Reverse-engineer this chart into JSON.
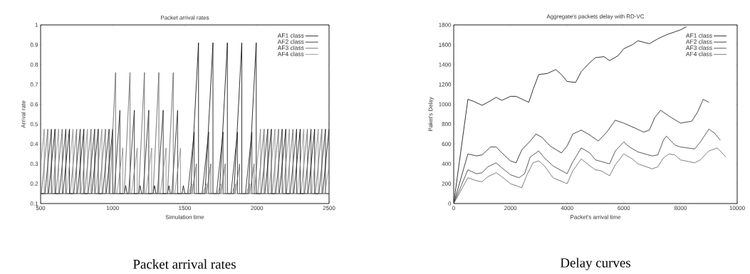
{
  "chart_data": [
    {
      "type": "line",
      "title": "Packet arrival rates",
      "xlabel": "Simulation time",
      "ylabel": "Arrival rate",
      "annotations": [
        "Packet arrival rates"
      ],
      "legend": "top right",
      "xlim": [
        500,
        2500
      ],
      "xticks": [
        500,
        1000,
        1500,
        2000,
        2500
      ],
      "ylim": [
        0.1,
        1
      ],
      "yticks": [
        0.1,
        0.2,
        0.3,
        0.4,
        0.5,
        0.6,
        0.7,
        0.8,
        0.9,
        1
      ],
      "series": [
        {
          "name": "AF1 class",
          "color": "#000000",
          "line_style": "solid",
          "x": [
            500,
            555,
            600,
            600,
            655,
            700,
            700,
            755,
            800,
            800,
            855,
            900,
            900,
            955,
            1000,
            1000,
            1080,
            1090,
            1100,
            1180,
            1190,
            1200,
            1280,
            1290,
            1300,
            1380,
            1390,
            1400,
            1480,
            1490,
            1500,
            1540,
            1595,
            1595,
            1640,
            1695,
            1695,
            1740,
            1795,
            1795,
            1840,
            1895,
            1895,
            1940,
            1995,
            1995,
            2055,
            2100,
            2100,
            2155,
            2200,
            2200,
            2255,
            2300,
            2300,
            2355,
            2400,
            2400,
            2455,
            2500
          ],
          "values": [
            0.15,
            0.15,
            0.475,
            0.15,
            0.15,
            0.475,
            0.15,
            0.15,
            0.475,
            0.15,
            0.15,
            0.475,
            0.15,
            0.15,
            0.475,
            0.15,
            0.15,
            0.19,
            0.15,
            0.15,
            0.19,
            0.15,
            0.15,
            0.19,
            0.15,
            0.15,
            0.19,
            0.15,
            0.15,
            0.19,
            0.15,
            0.15,
            0.91,
            0.15,
            0.15,
            0.91,
            0.15,
            0.15,
            0.91,
            0.15,
            0.15,
            0.91,
            0.15,
            0.15,
            0.91,
            0.15,
            0.15,
            0.475,
            0.15,
            0.15,
            0.475,
            0.15,
            0.15,
            0.475,
            0.15,
            0.15,
            0.475,
            0.15,
            0.15,
            0.475
          ]
        },
        {
          "name": "AF2 class",
          "color": "#222222",
          "line_style": "dashed",
          "x": [
            500,
            530,
            575,
            575,
            630,
            675,
            675,
            730,
            775,
            775,
            830,
            875,
            875,
            930,
            975,
            975,
            1010,
            1050,
            1050,
            1110,
            1150,
            1150,
            1210,
            1250,
            1250,
            1310,
            1350,
            1350,
            1410,
            1450,
            1450,
            1520,
            1565,
            1565,
            1620,
            1665,
            1665,
            1720,
            1765,
            1765,
            1820,
            1865,
            1865,
            1920,
            1965,
            1965,
            2030,
            2075,
            2075,
            2130,
            2175,
            2175,
            2230,
            2275,
            2275,
            2330,
            2375,
            2375,
            2430,
            2475,
            2475,
            2500
          ],
          "values": [
            0.15,
            0.15,
            0.475,
            0.15,
            0.15,
            0.475,
            0.15,
            0.15,
            0.475,
            0.15,
            0.15,
            0.475,
            0.15,
            0.15,
            0.475,
            0.15,
            0.15,
            0.57,
            0.15,
            0.15,
            0.57,
            0.15,
            0.15,
            0.57,
            0.15,
            0.15,
            0.57,
            0.15,
            0.15,
            0.57,
            0.15,
            0.15,
            0.46,
            0.15,
            0.15,
            0.46,
            0.15,
            0.15,
            0.46,
            0.15,
            0.15,
            0.46,
            0.15,
            0.15,
            0.46,
            0.15,
            0.15,
            0.475,
            0.15,
            0.15,
            0.475,
            0.15,
            0.15,
            0.475,
            0.15,
            0.15,
            0.475,
            0.15,
            0.15,
            0.475,
            0.15,
            0.15
          ]
        },
        {
          "name": "AF3 class",
          "color": "#666666",
          "line_style": "dotted",
          "x": [
            500,
            505,
            550,
            550,
            605,
            650,
            650,
            705,
            750,
            750,
            805,
            850,
            850,
            905,
            950,
            950,
            980,
            1020,
            1020,
            1080,
            1120,
            1120,
            1180,
            1220,
            1220,
            1280,
            1320,
            1320,
            1380,
            1420,
            1420,
            1550,
            1580,
            1580,
            1650,
            1680,
            1680,
            1750,
            1780,
            1780,
            1850,
            1880,
            1880,
            1950,
            1980,
            1980,
            2005,
            2050,
            2050,
            2105,
            2150,
            2150,
            2205,
            2250,
            2250,
            2305,
            2350,
            2350,
            2405,
            2450,
            2450,
            2500
          ],
          "values": [
            0.15,
            0.15,
            0.475,
            0.15,
            0.15,
            0.475,
            0.15,
            0.15,
            0.475,
            0.15,
            0.15,
            0.475,
            0.15,
            0.15,
            0.475,
            0.15,
            0.15,
            0.76,
            0.15,
            0.15,
            0.76,
            0.15,
            0.15,
            0.76,
            0.15,
            0.15,
            0.76,
            0.15,
            0.15,
            0.76,
            0.15,
            0.15,
            0.3,
            0.15,
            0.15,
            0.3,
            0.15,
            0.15,
            0.3,
            0.15,
            0.15,
            0.3,
            0.15,
            0.15,
            0.3,
            0.15,
            0.15,
            0.475,
            0.15,
            0.15,
            0.475,
            0.15,
            0.15,
            0.475,
            0.15,
            0.15,
            0.475,
            0.15,
            0.15,
            0.475,
            0.15,
            0.15
          ]
        },
        {
          "name": "AF4 class",
          "color": "#888888",
          "line_style": "dashed",
          "x": [
            500,
            525,
            525,
            580,
            625,
            625,
            680,
            725,
            725,
            780,
            825,
            825,
            880,
            925,
            925,
            1030,
            1070,
            1070,
            1130,
            1170,
            1170,
            1230,
            1270,
            1270,
            1330,
            1370,
            1370,
            1430,
            1470,
            1470,
            1525,
            1550,
            1550,
            1625,
            1650,
            1650,
            1725,
            1750,
            1750,
            1825,
            1850,
            1850,
            1925,
            1950,
            1950,
            1980,
            2025,
            2025,
            2080,
            2125,
            2125,
            2180,
            2225,
            2225,
            2280,
            2325,
            2325,
            2380,
            2425,
            2425,
            2470,
            2500
          ],
          "values": [
            0.29,
            0.475,
            0.15,
            0.15,
            0.475,
            0.15,
            0.15,
            0.475,
            0.15,
            0.15,
            0.475,
            0.15,
            0.15,
            0.475,
            0.15,
            0.15,
            0.38,
            0.15,
            0.15,
            0.38,
            0.15,
            0.15,
            0.38,
            0.15,
            0.15,
            0.38,
            0.15,
            0.15,
            0.38,
            0.15,
            0.15,
            0.2,
            0.15,
            0.15,
            0.2,
            0.15,
            0.15,
            0.2,
            0.15,
            0.15,
            0.2,
            0.15,
            0.15,
            0.2,
            0.15,
            0.15,
            0.475,
            0.15,
            0.15,
            0.475,
            0.15,
            0.15,
            0.475,
            0.15,
            0.15,
            0.475,
            0.15,
            0.15,
            0.475,
            0.15,
            0.15,
            0.29
          ]
        }
      ]
    },
    {
      "type": "line",
      "title": "Aggregate's packets delay with RD-VC",
      "xlabel": "Packet's arrival time",
      "ylabel": "Paket's Delay",
      "annotations": [
        "Delay curves"
      ],
      "legend": "top right",
      "xlim": [
        0,
        10000
      ],
      "xticks": [
        0,
        2000,
        4000,
        6000,
        8000,
        10000
      ],
      "ylim": [
        0,
        1800
      ],
      "yticks": [
        0,
        200,
        400,
        600,
        800,
        1000,
        1200,
        1400,
        1600,
        1800
      ],
      "series": [
        {
          "name": "AF1 class",
          "color": "#000000",
          "line_style": "solid",
          "x": [
            0,
            500,
            700,
            1000,
            1200,
            1500,
            1700,
            2000,
            2200,
            2500,
            2650,
            2800,
            3000,
            3300,
            3600,
            3800,
            4000,
            4300,
            4500,
            4800,
            5000,
            5300,
            5500,
            5800,
            6000,
            6300,
            6500,
            6900,
            7200,
            7500,
            7800,
            8000,
            8200
          ],
          "values": [
            0,
            1050,
            1030,
            990,
            1020,
            1070,
            1040,
            1080,
            1080,
            1040,
            1020,
            1150,
            1300,
            1310,
            1350,
            1300,
            1230,
            1220,
            1330,
            1420,
            1470,
            1480,
            1440,
            1490,
            1560,
            1600,
            1640,
            1610,
            1660,
            1700,
            1730,
            1750,
            1780
          ]
        },
        {
          "name": "AF2 class",
          "color": "#222222",
          "line_style": "dashed",
          "x": [
            0,
            500,
            800,
            1000,
            1300,
            1500,
            1700,
            2000,
            2200,
            2400,
            2700,
            2900,
            3100,
            3400,
            3800,
            4000,
            4200,
            4500,
            4800,
            5100,
            5400,
            5700,
            6000,
            6400,
            6700,
            6900,
            7100,
            7300,
            7600,
            8000,
            8400,
            8600,
            8800,
            9000
          ],
          "values": [
            0,
            500,
            480,
            490,
            570,
            570,
            510,
            430,
            410,
            540,
            630,
            700,
            670,
            580,
            510,
            580,
            700,
            740,
            690,
            630,
            720,
            840,
            810,
            760,
            720,
            740,
            870,
            940,
            880,
            810,
            830,
            920,
            1050,
            1020
          ]
        },
        {
          "name": "AF3 class",
          "color": "#444444",
          "line_style": "dotted",
          "x": [
            0,
            500,
            800,
            1000,
            1200,
            1500,
            1700,
            2000,
            2300,
            2500,
            2700,
            3000,
            3200,
            3500,
            4000,
            4200,
            4500,
            4800,
            5000,
            5500,
            5700,
            6000,
            6200,
            6500,
            7000,
            7200,
            7400,
            7500,
            7800,
            8000,
            8500,
            8700,
            9000,
            9200,
            9400
          ],
          "values": [
            0,
            340,
            300,
            310,
            370,
            410,
            360,
            290,
            260,
            300,
            470,
            530,
            460,
            380,
            300,
            420,
            560,
            510,
            440,
            400,
            530,
            620,
            570,
            520,
            480,
            490,
            640,
            680,
            590,
            570,
            550,
            620,
            750,
            710,
            640
          ]
        },
        {
          "name": "AF4 class",
          "color": "#666666",
          "line_style": "dashed",
          "x": [
            0,
            500,
            800,
            1000,
            1200,
            1500,
            1700,
            2000,
            2400,
            2600,
            2800,
            3000,
            3200,
            3500,
            4000,
            4200,
            4500,
            4800,
            5000,
            5200,
            5500,
            5700,
            6000,
            6300,
            6500,
            7000,
            7200,
            7400,
            7600,
            7800,
            8000,
            8500,
            8700,
            9000,
            9300,
            9600
          ],
          "values": [
            0,
            260,
            230,
            220,
            270,
            310,
            270,
            200,
            160,
            300,
            410,
            430,
            380,
            260,
            200,
            330,
            450,
            380,
            340,
            330,
            280,
            390,
            500,
            450,
            400,
            350,
            370,
            460,
            500,
            490,
            440,
            410,
            440,
            530,
            560,
            470
          ]
        }
      ]
    }
  ]
}
